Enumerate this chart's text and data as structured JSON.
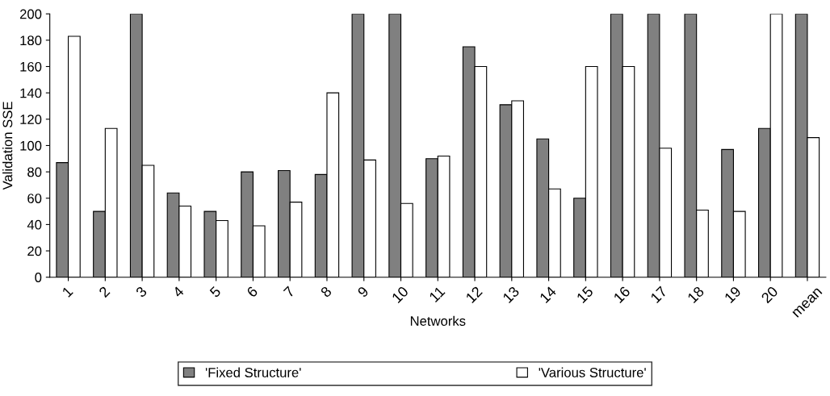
{
  "chart_data": {
    "type": "bar",
    "xlabel": "Networks",
    "ylabel": "Validation SSE",
    "categories": [
      "1",
      "2",
      "3",
      "4",
      "5",
      "6",
      "7",
      "8",
      "9",
      "10",
      "11",
      "12",
      "13",
      "14",
      "15",
      "16",
      "17",
      "18",
      "19",
      "20",
      "mean"
    ],
    "series": [
      {
        "name": "'Fixed Structure'",
        "color": "#808080",
        "values": [
          87,
          50,
          200,
          64,
          50,
          80,
          81,
          78,
          200,
          200,
          90,
          175,
          131,
          105,
          60,
          200,
          200,
          200,
          97,
          113,
          200
        ]
      },
      {
        "name": "'Various Structure'",
        "color": "#ffffff",
        "values": [
          183,
          113,
          85,
          54,
          43,
          39,
          57,
          140,
          89,
          56,
          92,
          160,
          134,
          67,
          160,
          160,
          98,
          51,
          50,
          200,
          106
        ]
      }
    ],
    "ylim": [
      0,
      200
    ],
    "yticks": [
      0,
      20,
      40,
      60,
      80,
      100,
      120,
      140,
      160,
      180,
      200
    ],
    "grid": false,
    "legend": "bottom"
  }
}
